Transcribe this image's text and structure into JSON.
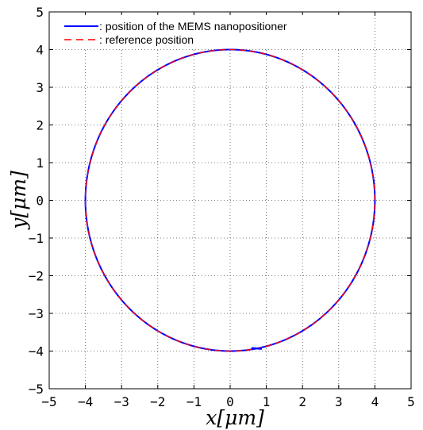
{
  "chart_data": {
    "type": "line",
    "title": "",
    "xlabel": "x[μm]",
    "ylabel": "y[μm]",
    "xlim": [
      -5,
      5
    ],
    "ylim": [
      -5,
      5
    ],
    "xticks": [
      -5,
      -4,
      -3,
      -2,
      -1,
      0,
      1,
      2,
      3,
      4,
      5
    ],
    "yticks": [
      -5,
      -4,
      -3,
      -2,
      -1,
      0,
      1,
      2,
      3,
      4,
      5
    ],
    "tick_labels": {
      "x": [
        "−5",
        "−4",
        "−3",
        "−2",
        "−1",
        "0",
        "1",
        "2",
        "3",
        "4",
        "5"
      ],
      "y": [
        "−5",
        "−4",
        "−3",
        "−2",
        "−1",
        "0",
        "1",
        "2",
        "3",
        "4",
        "5"
      ]
    },
    "grid": true,
    "grid_style": "dotted",
    "legend_position": "top-left",
    "series": [
      {
        "name": ": position of the MEMS nanopositioner",
        "color": "#0000ff",
        "line_style": "solid",
        "shape": "circle",
        "center": [
          0,
          0
        ],
        "radius": 4,
        "x": [
          4,
          3.86,
          3.46,
          2.83,
          2,
          1.04,
          0,
          -1.04,
          -2,
          -2.83,
          -3.46,
          -3.86,
          -4,
          -3.86,
          -3.46,
          -2.83,
          -2,
          -1.04,
          0,
          0.7,
          1.04,
          2,
          2.83,
          3.46,
          3.86,
          4
        ],
        "y": [
          0,
          1.04,
          2,
          2.83,
          3.46,
          3.86,
          4,
          3.86,
          3.46,
          2.83,
          2,
          1.04,
          0,
          -1.04,
          -2,
          -2.83,
          -3.46,
          -3.86,
          -4,
          -3.92,
          -3.86,
          -3.46,
          -2.83,
          -2,
          -1.04,
          0
        ]
      },
      {
        "name": ": reference position",
        "color": "#ff0000",
        "line_style": "dashed",
        "shape": "circle",
        "center": [
          0,
          0
        ],
        "radius": 4,
        "x": [
          4,
          3.86,
          3.46,
          2.83,
          2,
          1.04,
          0,
          -1.04,
          -2,
          -2.83,
          -3.46,
          -3.86,
          -4,
          -3.86,
          -3.46,
          -2.83,
          -2,
          -1.04,
          0,
          1.04,
          2,
          2.83,
          3.46,
          3.86,
          4
        ],
        "y": [
          0,
          1.04,
          2,
          2.83,
          3.46,
          3.86,
          4,
          3.86,
          3.46,
          2.83,
          2,
          1.04,
          0,
          -1.04,
          -2,
          -2.83,
          -3.46,
          -3.86,
          -4,
          -3.86,
          -3.46,
          -2.83,
          -2,
          -1.04,
          0
        ]
      }
    ]
  }
}
